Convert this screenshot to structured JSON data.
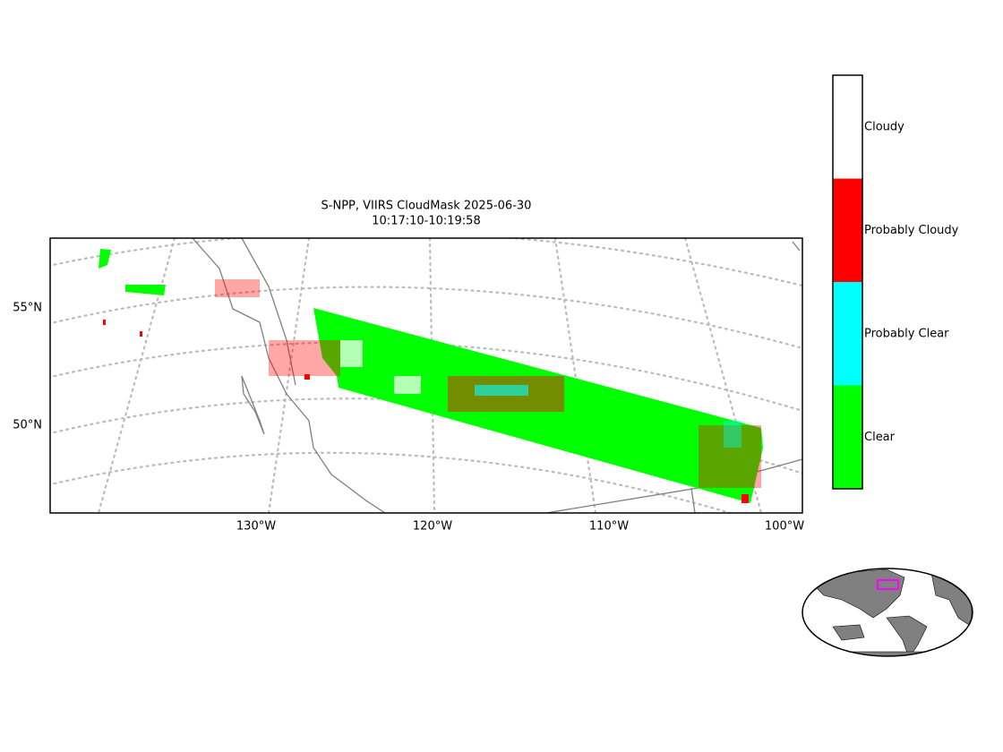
{
  "title": {
    "line1": "S-NPP, VIIRS CloudMask 2025-06-30",
    "line2": "10:17:10-10:19:58"
  },
  "map": {
    "lat_labels": [
      "55°N",
      "50°N"
    ],
    "lon_labels": [
      "130°W",
      "120°W",
      "110°W",
      "100°W"
    ]
  },
  "colorbar": {
    "labels": [
      "Clear",
      "Probably Clear",
      "Probably Cloudy",
      "Cloudy"
    ],
    "colors": [
      "#00ff00",
      "#00ffff",
      "#ff0000",
      "#ffffff"
    ]
  }
}
